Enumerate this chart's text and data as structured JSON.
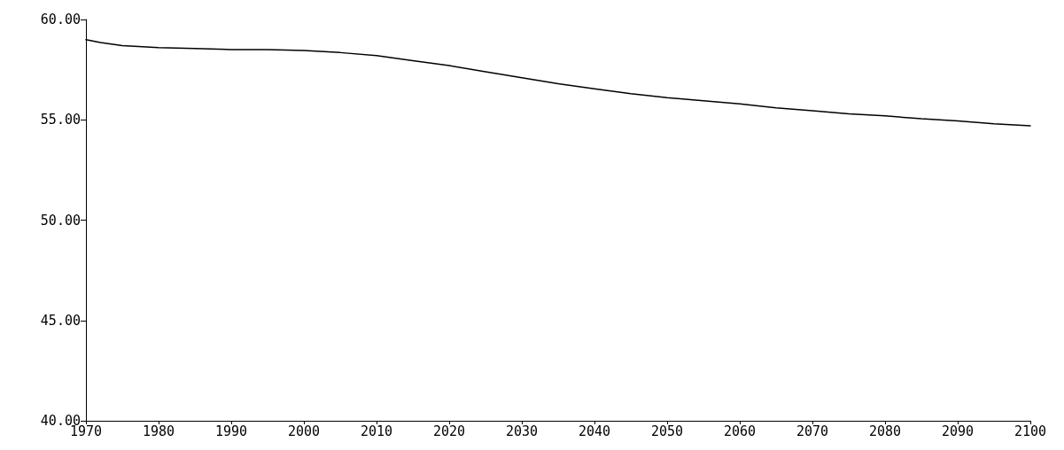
{
  "chart_data": {
    "type": "line",
    "x": [
      1970,
      1972,
      1975,
      1980,
      1985,
      1990,
      1995,
      2000,
      2005,
      2010,
      2015,
      2020,
      2025,
      2030,
      2035,
      2040,
      2045,
      2050,
      2055,
      2060,
      2065,
      2070,
      2075,
      2080,
      2085,
      2090,
      2095,
      2100
    ],
    "series": [
      {
        "color": "#000000",
        "values": [
          59.0,
          58.85,
          58.7,
          58.6,
          58.55,
          58.5,
          58.5,
          58.45,
          58.35,
          58.2,
          57.95,
          57.7,
          57.4,
          57.1,
          56.8,
          56.55,
          56.3,
          56.1,
          55.95,
          55.8,
          55.6,
          55.45,
          55.3,
          55.2,
          55.05,
          54.95,
          54.8,
          54.7
        ]
      }
    ],
    "xlim": [
      1970,
      2100
    ],
    "xticks": [
      1970,
      1980,
      1990,
      2000,
      2010,
      2020,
      2030,
      2040,
      2050,
      2060,
      2070,
      2080,
      2090,
      2100
    ],
    "ylim": [
      40,
      60
    ],
    "yticks": [
      {
        "value": 40,
        "label": "40.00"
      },
      {
        "value": 45,
        "label": "45.00"
      },
      {
        "value": 50,
        "label": "50.00"
      },
      {
        "value": 55,
        "label": "55.00"
      },
      {
        "value": 60,
        "label": "60.00"
      }
    ],
    "grid": false,
    "marker": "none",
    "line_style": "solid"
  }
}
